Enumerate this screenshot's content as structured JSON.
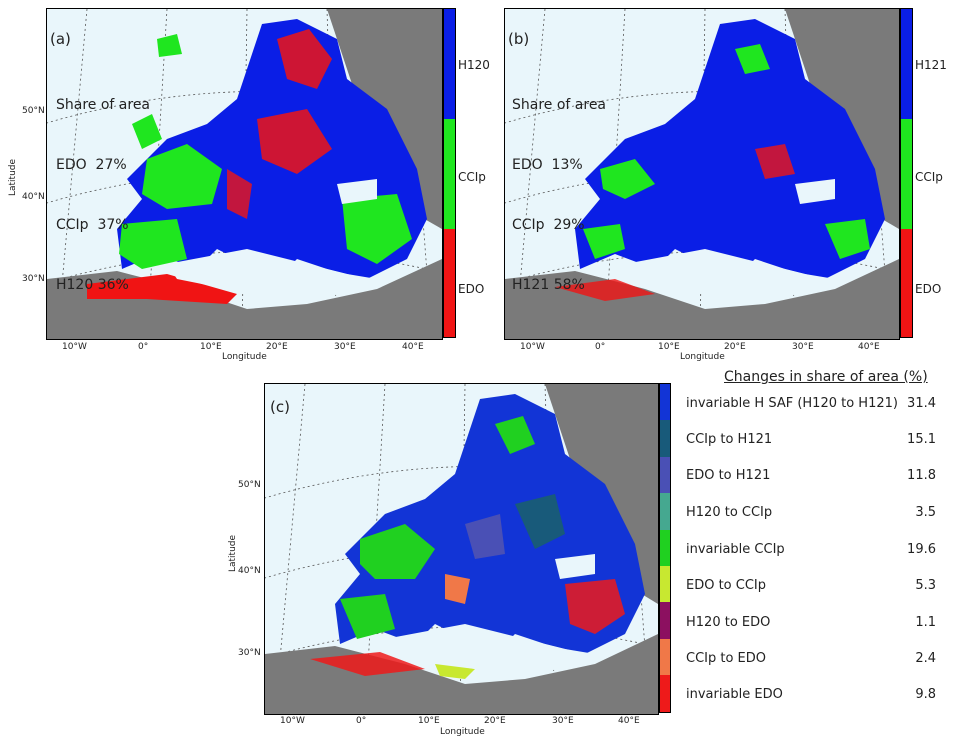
{
  "colors": {
    "H": "#0a1ee6",
    "CCIp": "#1fe61f",
    "EDO": "#f01414",
    "land": "#7a7a7a",
    "sea": "#e9f6fb",
    "c_invariableH": "#1234d6",
    "c_CCIp_to_H121": "#185a7a",
    "c_EDO_to_H121": "#4a50b5",
    "c_H120_to_CCIp": "#45a890",
    "c_invariableCCIp": "#20d020",
    "c_EDO_to_CCIp": "#c8e830",
    "c_H120_to_EDO": "#8c1060",
    "c_CCIp_to_EDO": "#f07848",
    "c_invariableEDO": "#ee1a1a"
  },
  "axes": {
    "xlabel": "Longitude",
    "ylabel": "Latitude",
    "xticks": [
      "10°W",
      "0°",
      "10°E",
      "20°E",
      "30°E",
      "40°E"
    ],
    "yticks": [
      "50°N",
      "40°N",
      "30°N"
    ]
  },
  "panel_a": {
    "letter": "(a)",
    "share_title": "Share of area",
    "lines": [
      "EDO  27%",
      "CCIp  37%",
      "H120 36%"
    ],
    "colorbar": [
      "H120",
      "CCIp",
      "EDO"
    ]
  },
  "panel_b": {
    "letter": "(b)",
    "share_title": "Share of area",
    "lines": [
      "EDO  13%",
      "CCIp  29%",
      "H121 58%"
    ],
    "colorbar": [
      "H121",
      "CCIp",
      "EDO"
    ]
  },
  "panel_c": {
    "letter": "(c)",
    "legend_title": "Changes in share of area (%)",
    "rows": [
      {
        "label": "invariable H SAF (H120 to H121)",
        "value": "31.4"
      },
      {
        "label": "CCIp to H121",
        "value": "15.1"
      },
      {
        "label": "EDO to H121",
        "value": "11.8"
      },
      {
        "label": "H120 to CCIp",
        "value": "3.5"
      },
      {
        "label": "invariable CCIp",
        "value": "19.6"
      },
      {
        "label": "EDO to CCIp",
        "value": "5.3"
      },
      {
        "label": "H120 to EDO",
        "value": "1.1"
      },
      {
        "label": "CCIp to EDO",
        "value": "2.4"
      },
      {
        "label": "invariable EDO",
        "value": "9.8"
      }
    ]
  }
}
